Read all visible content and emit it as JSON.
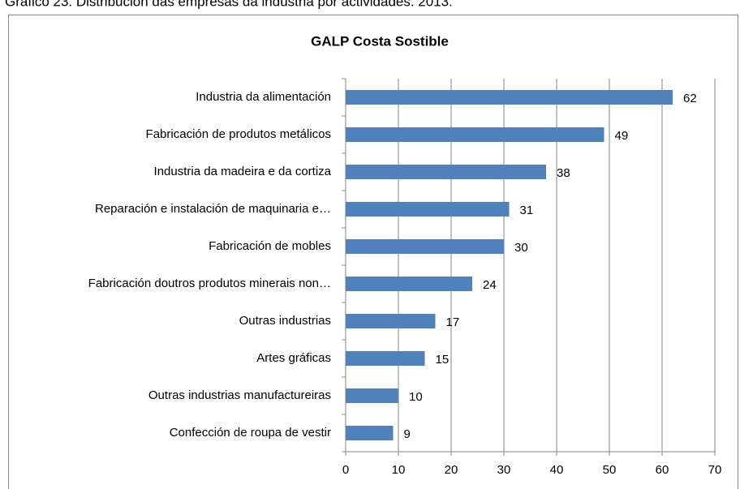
{
  "caption": "Gráfico 23. Distribución das empresas da industria por actividades. 2013.",
  "chart_data": {
    "type": "bar",
    "orientation": "horizontal",
    "title": "GALP Costa Sostible",
    "categories": [
      "Industria da alimentación",
      "Fabricación de produtos metálicos",
      "Industria da madeira e da cortiza",
      "Reparación e instalación de maquinaria e…",
      "Fabricación de mobles",
      "Fabricación doutros produtos minerais non…",
      "Outras industrias",
      "Artes gráficas",
      "Outras industrias manufactureiras",
      "Confección de roupa de vestir"
    ],
    "values": [
      62,
      49,
      38,
      31,
      30,
      24,
      17,
      15,
      10,
      9
    ],
    "color": "#4f81bd",
    "xlim": [
      0,
      70
    ],
    "xticks": [
      0,
      10,
      20,
      30,
      40,
      50,
      60,
      70
    ],
    "grid": true
  }
}
